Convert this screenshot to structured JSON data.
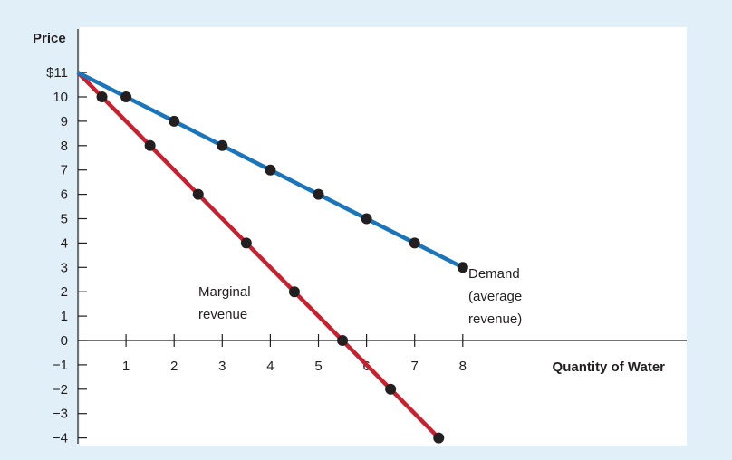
{
  "chart_data": {
    "type": "line",
    "title": "",
    "ylabel": "Price",
    "xlabel": "Quantity of Water",
    "xlim": [
      0,
      8.7
    ],
    "ylim": [
      -4,
      12
    ],
    "y_ticks": [
      11,
      10,
      9,
      8,
      7,
      6,
      5,
      4,
      3,
      2,
      1,
      0,
      -1,
      -2,
      -3,
      -4
    ],
    "y_tick_labels": [
      "$11",
      "10",
      "9",
      "8",
      "7",
      "6",
      "5",
      "4",
      "3",
      "2",
      "1",
      "0",
      "−1",
      "−2",
      "−3",
      "−4"
    ],
    "x_ticks": [
      1,
      2,
      3,
      4,
      5,
      6,
      7,
      8
    ],
    "x_tick_labels": [
      "1",
      "2",
      "3",
      "4",
      "5",
      "6",
      "7",
      "8"
    ],
    "grid": false,
    "series": [
      {
        "name": "Demand",
        "color": "#1a75bb",
        "line": [
          [
            0,
            11
          ],
          [
            8,
            3
          ]
        ],
        "points": [
          [
            1,
            10
          ],
          [
            2,
            9
          ],
          [
            3,
            8
          ],
          [
            4,
            7
          ],
          [
            5,
            6
          ],
          [
            6,
            5
          ],
          [
            7,
            4
          ],
          [
            8,
            3
          ]
        ]
      },
      {
        "name": "Marginal revenue",
        "color": "#c8202f",
        "line": [
          [
            0,
            11
          ],
          [
            7.5,
            -4
          ]
        ],
        "points": [
          [
            0.5,
            10
          ],
          [
            1.5,
            8
          ],
          [
            2.5,
            6
          ],
          [
            3.5,
            4
          ],
          [
            4.5,
            2
          ],
          [
            5.5,
            0
          ],
          [
            6.5,
            -2
          ],
          [
            7.5,
            -4
          ]
        ]
      }
    ],
    "annotations": {
      "demand": [
        "Demand",
        "(average",
        "revenue)"
      ],
      "marginal_revenue": [
        "Marginal",
        "revenue"
      ]
    }
  }
}
